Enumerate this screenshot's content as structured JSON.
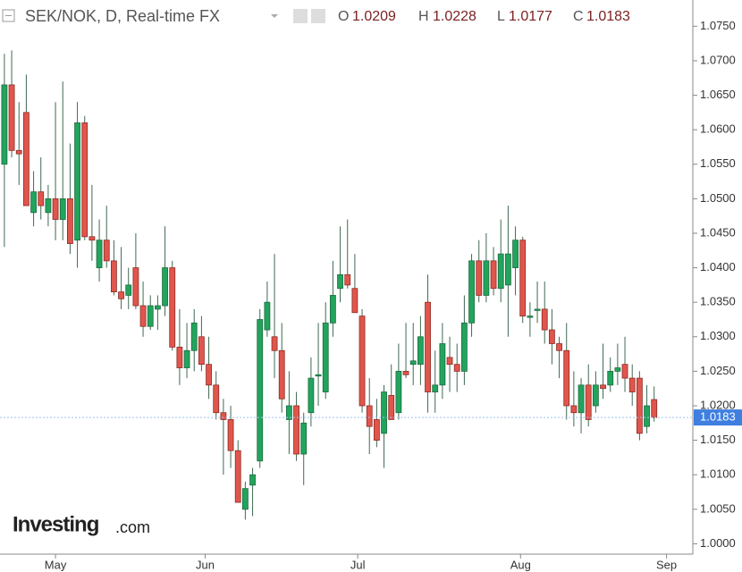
{
  "chart_data": {
    "type": "candlestick",
    "title": "SEK/NOK, D, Real-time FX",
    "ohlc_labels": [
      "O",
      "H",
      "L",
      "C"
    ],
    "logo": {
      "brand": "Investing",
      "suffix": ".com"
    },
    "up_color": "#22a45d",
    "down_color": "#e0564c",
    "wick_color": "#3f6a52",
    "xlim": [
      -0.6,
      94.3
    ],
    "xticks": [
      {
        "value": 7,
        "label": "May"
      },
      {
        "value": 27.5,
        "label": "Jun"
      },
      {
        "value": 48.4,
        "label": "Jul"
      },
      {
        "value": 70.7,
        "label": "Aug"
      },
      {
        "value": 90.7,
        "label": "Sep"
      }
    ],
    "ylim": [
      0.9985,
      1.0788
    ],
    "yticks": [
      {
        "value": 1.0,
        "label": "1.0000"
      },
      {
        "value": 1.005,
        "label": "1.0050"
      },
      {
        "value": 1.01,
        "label": "1.0100"
      },
      {
        "value": 1.015,
        "label": "1.0150"
      },
      {
        "value": 1.02,
        "label": "1.0200"
      },
      {
        "value": 1.025,
        "label": "1.0250"
      },
      {
        "value": 1.03,
        "label": "1.0300"
      },
      {
        "value": 1.035,
        "label": "1.0350"
      },
      {
        "value": 1.04,
        "label": "1.0400"
      },
      {
        "value": 1.045,
        "label": "1.0450"
      },
      {
        "value": 1.05,
        "label": "1.0500"
      },
      {
        "value": 1.055,
        "label": "1.0550"
      },
      {
        "value": 1.06,
        "label": "1.0600"
      },
      {
        "value": 1.065,
        "label": "1.0650"
      },
      {
        "value": 1.07,
        "label": "1.0700"
      },
      {
        "value": 1.075,
        "label": "1.0750"
      }
    ],
    "series": [
      {
        "name": "SEK/NOK",
        "open": [
          1.055,
          1.0665,
          1.057,
          1.0625,
          1.048,
          1.051,
          1.048,
          1.05,
          1.047,
          1.05,
          1.044,
          1.061,
          1.0445,
          1.04,
          1.044,
          1.041,
          1.0365,
          1.036,
          1.04,
          1.0345,
          1.0315,
          1.034,
          1.0345,
          1.04,
          1.0285,
          1.0255,
          1.028,
          1.03,
          1.026,
          1.023,
          1.019,
          1.018,
          1.0135,
          1.005,
          1.0085,
          1.012,
          1.031,
          1.03,
          1.028,
          1.018,
          1.02,
          1.013,
          1.019,
          1.0245,
          1.022,
          1.032,
          1.037,
          1.039,
          1.037,
          1.033,
          1.02,
          1.018,
          1.016,
          1.0215,
          1.019,
          1.025,
          1.026,
          1.026,
          1.035,
          1.022,
          1.023,
          1.027,
          1.026,
          1.025,
          1.032,
          1.041,
          1.036,
          1.041,
          1.037,
          1.0375,
          1.04,
          1.044,
          1.033,
          1.034,
          1.034,
          1.031,
          1.029,
          1.028,
          1.02,
          1.019,
          1.023,
          1.02,
          1.023,
          1.023,
          1.025,
          1.026,
          1.024,
          1.024,
          1.017,
          1.0209
        ],
        "high": [
          1.071,
          1.0715,
          1.064,
          1.068,
          1.054,
          1.056,
          1.052,
          1.064,
          1.067,
          1.058,
          1.064,
          1.062,
          1.052,
          1.047,
          1.049,
          1.044,
          1.043,
          1.04,
          1.045,
          1.038,
          1.036,
          1.036,
          1.046,
          1.041,
          1.034,
          1.032,
          1.034,
          1.033,
          1.03,
          1.025,
          1.021,
          1.02,
          1.015,
          1.009,
          1.011,
          1.034,
          1.038,
          1.042,
          1.032,
          1.025,
          1.022,
          1.019,
          1.027,
          1.032,
          1.035,
          1.041,
          1.046,
          1.047,
          1.042,
          1.034,
          1.024,
          1.021,
          1.023,
          1.026,
          1.029,
          1.032,
          1.032,
          1.033,
          1.039,
          1.028,
          1.032,
          1.03,
          1.029,
          1.036,
          1.042,
          1.044,
          1.045,
          1.043,
          1.047,
          1.049,
          1.046,
          1.0445,
          1.035,
          1.038,
          1.038,
          1.034,
          1.03,
          1.032,
          1.025,
          1.024,
          1.026,
          1.025,
          1.029,
          1.027,
          1.029,
          1.03,
          1.026,
          1.025,
          1.023,
          1.0228
        ],
        "low": [
          1.043,
          1.056,
          1.052,
          1.049,
          1.046,
          1.047,
          1.046,
          1.044,
          1.044,
          1.042,
          1.04,
          1.044,
          1.041,
          1.038,
          1.04,
          1.036,
          1.034,
          1.034,
          1.034,
          1.03,
          1.031,
          1.031,
          1.033,
          1.028,
          1.023,
          1.024,
          1.025,
          1.025,
          1.021,
          1.018,
          1.01,
          1.011,
          1.006,
          1.0035,
          1.004,
          1.011,
          1.03,
          1.024,
          1.019,
          1.013,
          1.012,
          1.0085,
          1.017,
          1.02,
          1.021,
          1.03,
          1.035,
          1.037,
          1.034,
          1.019,
          1.013,
          1.014,
          1.011,
          1.018,
          1.018,
          1.024,
          1.023,
          1.023,
          1.019,
          1.019,
          1.021,
          1.022,
          1.022,
          1.023,
          1.03,
          1.035,
          1.035,
          1.036,
          1.035,
          1.03,
          1.036,
          1.032,
          1.03,
          1.032,
          1.029,
          1.026,
          1.024,
          1.018,
          1.017,
          1.016,
          1.017,
          1.019,
          1.021,
          1.022,
          1.023,
          1.022,
          1.02,
          1.015,
          1.016,
          1.0177
        ],
        "close": [
          1.0665,
          1.057,
          1.0565,
          1.049,
          1.051,
          1.049,
          1.05,
          1.047,
          1.05,
          1.0435,
          1.061,
          1.0445,
          1.044,
          1.044,
          1.041,
          1.0365,
          1.0355,
          1.0375,
          1.0345,
          1.0315,
          1.0345,
          1.0345,
          1.04,
          1.0285,
          1.0255,
          1.028,
          1.032,
          1.026,
          1.023,
          1.019,
          1.018,
          1.0135,
          1.006,
          1.008,
          1.01,
          1.0325,
          1.035,
          1.028,
          1.021,
          1.02,
          1.013,
          1.0175,
          1.024,
          1.0245,
          1.032,
          1.036,
          1.039,
          1.0375,
          1.0335,
          1.02,
          1.017,
          1.015,
          1.022,
          1.018,
          1.025,
          1.0245,
          1.0265,
          1.03,
          1.022,
          1.023,
          1.029,
          1.026,
          1.025,
          1.032,
          1.041,
          1.036,
          1.041,
          1.037,
          1.042,
          1.042,
          1.044,
          1.033,
          1.033,
          1.034,
          1.031,
          1.029,
          1.028,
          1.02,
          1.019,
          1.023,
          1.018,
          1.023,
          1.0225,
          1.025,
          1.0255,
          1.024,
          1.022,
          1.016,
          1.02,
          1.0183
        ]
      }
    ]
  }
}
